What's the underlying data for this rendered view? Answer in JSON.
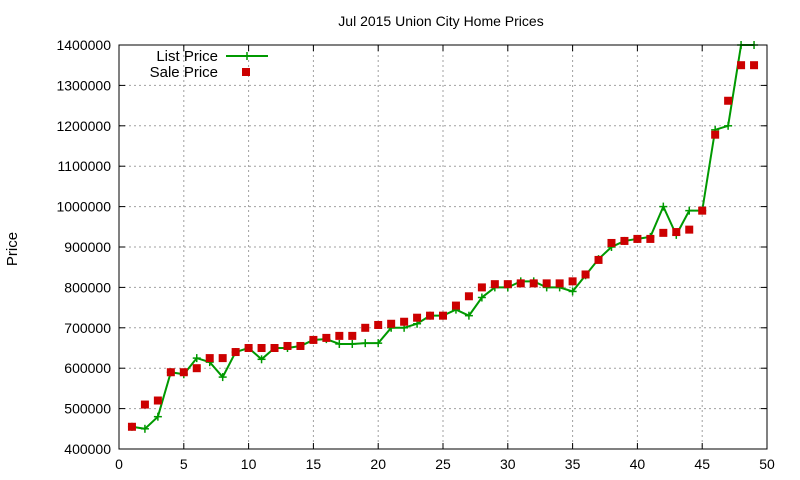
{
  "chart_data": {
    "type": "line",
    "title": "Jul 2015 Union City Home Prices",
    "xlabel": "",
    "ylabel": "Price",
    "xlim": [
      0,
      50
    ],
    "ylim": [
      400000,
      1400000
    ],
    "xticks": [
      0,
      5,
      10,
      15,
      20,
      25,
      30,
      35,
      40,
      45,
      50
    ],
    "yticks": [
      400000,
      500000,
      600000,
      700000,
      800000,
      900000,
      1000000,
      1100000,
      1200000,
      1300000,
      1400000
    ],
    "grid": true,
    "legend_position": "top-left",
    "series": [
      {
        "name": "List Price",
        "style": "line-with-plus-markers",
        "color": "#009900",
        "x": [
          1,
          2,
          3,
          4,
          5,
          6,
          7,
          8,
          9,
          10,
          11,
          12,
          13,
          14,
          15,
          16,
          17,
          18,
          19,
          20,
          21,
          22,
          23,
          24,
          25,
          26,
          27,
          28,
          29,
          30,
          31,
          32,
          33,
          34,
          35,
          36,
          37,
          38,
          39,
          40,
          41,
          42,
          43,
          44,
          45,
          46,
          47,
          48,
          49
        ],
        "values": [
          455000,
          450000,
          480000,
          590000,
          585000,
          625000,
          615000,
          578000,
          640000,
          650000,
          622000,
          650000,
          650000,
          655000,
          670000,
          672000,
          660000,
          660000,
          662000,
          662000,
          700000,
          700000,
          710000,
          730000,
          730000,
          745000,
          730000,
          775000,
          800000,
          800000,
          815000,
          815000,
          800000,
          800000,
          790000,
          830000,
          870000,
          900000,
          915000,
          920000,
          925000,
          1000000,
          930000,
          990000,
          990000,
          1190000,
          1200000,
          1400000,
          1400000
        ]
      },
      {
        "name": "Sale Price",
        "style": "square-markers",
        "color": "#cc0000",
        "x": [
          1,
          2,
          3,
          4,
          5,
          6,
          7,
          8,
          9,
          10,
          11,
          12,
          13,
          14,
          15,
          16,
          17,
          18,
          19,
          20,
          21,
          22,
          23,
          24,
          25,
          26,
          27,
          28,
          29,
          30,
          31,
          32,
          33,
          34,
          35,
          36,
          37,
          38,
          39,
          40,
          41,
          42,
          43,
          44,
          45,
          46,
          47,
          48,
          49
        ],
        "values": [
          455000,
          510000,
          520000,
          590000,
          590000,
          600000,
          625000,
          625000,
          640000,
          650000,
          650000,
          650000,
          655000,
          655000,
          670000,
          675000,
          680000,
          680000,
          700000,
          707000,
          710000,
          715000,
          725000,
          730000,
          730000,
          755000,
          778000,
          800000,
          808000,
          808000,
          810000,
          810000,
          810000,
          810000,
          815000,
          832000,
          868000,
          910000,
          915000,
          920000,
          920000,
          935000,
          937000,
          943000,
          990000,
          1178000,
          1262000,
          1350000,
          1350000
        ]
      }
    ]
  }
}
